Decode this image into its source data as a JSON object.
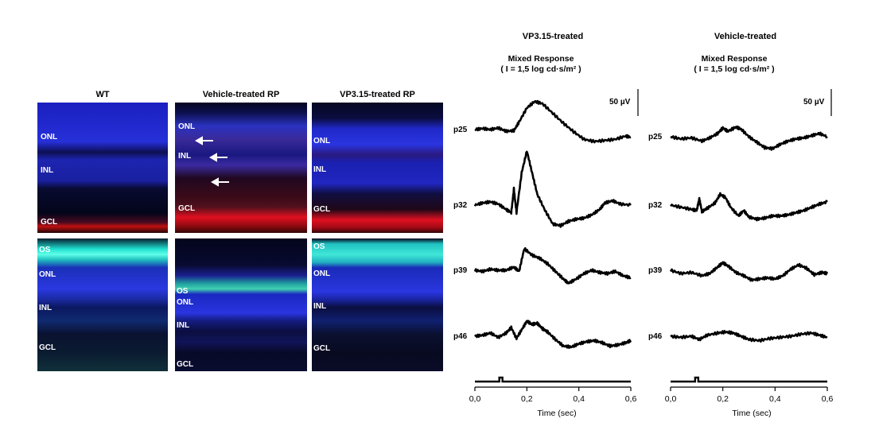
{
  "micrographs": {
    "columns": [
      "WT",
      "Vehicle-treated RP",
      "VP3.15-treated RP"
    ],
    "panels": [
      {
        "id": "wt-top",
        "labels": [
          {
            "t": "ONL"
          },
          {
            "t": "INL"
          },
          {
            "t": "GCL"
          }
        ]
      },
      {
        "id": "veh-top",
        "labels": [
          {
            "t": "ONL"
          },
          {
            "t": "INL"
          },
          {
            "t": "GCL"
          }
        ]
      },
      {
        "id": "vp-top",
        "labels": [
          {
            "t": "ONL"
          },
          {
            "t": "INL"
          },
          {
            "t": "GCL"
          }
        ]
      },
      {
        "id": "wt-bot",
        "labels": [
          {
            "t": "OS"
          },
          {
            "t": "ONL"
          },
          {
            "t": "INL"
          },
          {
            "t": "GCL"
          }
        ]
      },
      {
        "id": "veh-bot",
        "labels": [
          {
            "t": "OS"
          },
          {
            "t": "ONL"
          },
          {
            "t": "INL"
          },
          {
            "t": "GCL"
          }
        ]
      },
      {
        "id": "vp-bot",
        "labels": [
          {
            "t": "OS"
          },
          {
            "t": "ONL"
          },
          {
            "t": "INL"
          },
          {
            "t": "GCL"
          }
        ]
      }
    ]
  },
  "chart_data": [
    {
      "type": "line",
      "title": "VP3.15-treated",
      "subtitle_line1": "Mixed Response",
      "subtitle_line2": "( I = 1,5 log cd·s/m² )",
      "xlabel": "Time (sec)",
      "xlim": [
        0,
        0.6
      ],
      "xticks": [
        "0,0",
        "0,2",
        "0,4",
        "0,6"
      ],
      "scale_bar": "50 µV",
      "series": [
        {
          "name": "p25",
          "x": [
            0,
            0.03,
            0.06,
            0.09,
            0.12,
            0.15,
            0.17,
            0.2,
            0.23,
            0.26,
            0.3,
            0.34,
            0.38,
            0.42,
            0.46,
            0.5,
            0.54,
            0.58,
            0.6
          ],
          "y": [
            0,
            2,
            0,
            3,
            -3,
            -2,
            14,
            40,
            52,
            48,
            30,
            12,
            -4,
            -18,
            -22,
            -20,
            -18,
            -12,
            -14
          ]
        },
        {
          "name": "p32",
          "x": [
            0,
            0.03,
            0.06,
            0.09,
            0.12,
            0.14,
            0.15,
            0.16,
            0.18,
            0.2,
            0.22,
            0.24,
            0.27,
            0.3,
            0.33,
            0.36,
            0.39,
            0.42,
            0.45,
            0.48,
            0.5,
            0.53,
            0.56,
            0.6
          ],
          "y": [
            0,
            4,
            6,
            2,
            -8,
            -14,
            30,
            -14,
            60,
            100,
            60,
            20,
            -10,
            -35,
            -38,
            -30,
            -26,
            -24,
            -18,
            -8,
            4,
            8,
            2,
            0
          ]
        },
        {
          "name": "p39",
          "x": [
            0,
            0.03,
            0.06,
            0.09,
            0.12,
            0.15,
            0.17,
            0.19,
            0.22,
            0.25,
            0.28,
            0.31,
            0.34,
            0.36,
            0.39,
            0.42,
            0.45,
            0.48,
            0.51,
            0.54,
            0.57,
            0.6
          ],
          "y": [
            0,
            -2,
            2,
            0,
            0,
            6,
            -2,
            40,
            28,
            22,
            12,
            -2,
            -16,
            -24,
            -16,
            -6,
            0,
            -4,
            -6,
            -2,
            -10,
            -14
          ]
        },
        {
          "name": "p46",
          "x": [
            0,
            0.03,
            0.06,
            0.09,
            0.12,
            0.14,
            0.16,
            0.18,
            0.2,
            0.22,
            0.24,
            0.26,
            0.28,
            0.31,
            0.34,
            0.37,
            0.4,
            0.43,
            0.46,
            0.49,
            0.52,
            0.55,
            0.58,
            0.6
          ],
          "y": [
            0,
            2,
            6,
            -2,
            6,
            16,
            -4,
            12,
            28,
            22,
            24,
            14,
            8,
            -6,
            -18,
            -20,
            -14,
            -10,
            -8,
            -12,
            -18,
            -16,
            -12,
            -8
          ]
        }
      ],
      "stimulus_marker_x": 0.1
    },
    {
      "type": "line",
      "title": "Vehicle-treated",
      "subtitle_line1": "Mixed Response",
      "subtitle_line2": "( I = 1,5 log cd·s/m² )",
      "xlabel": "Time (sec)",
      "xlim": [
        0,
        0.6
      ],
      "xticks": [
        "0,0",
        "0,2",
        "0,4",
        "0,6"
      ],
      "scale_bar": "50 µV",
      "series": [
        {
          "name": "p25",
          "x": [
            0,
            0.04,
            0.08,
            0.12,
            0.15,
            0.18,
            0.2,
            0.22,
            0.25,
            0.27,
            0.3,
            0.33,
            0.36,
            0.39,
            0.42,
            0.45,
            0.48,
            0.51,
            0.54,
            0.57,
            0.6
          ],
          "y": [
            0,
            -4,
            -2,
            -8,
            -2,
            6,
            16,
            10,
            18,
            14,
            0,
            -10,
            -20,
            -22,
            -14,
            -8,
            -4,
            -2,
            2,
            6,
            0
          ]
        },
        {
          "name": "p32",
          "x": [
            0,
            0.04,
            0.08,
            0.1,
            0.11,
            0.12,
            0.14,
            0.17,
            0.19,
            0.21,
            0.23,
            0.26,
            0.28,
            0.3,
            0.33,
            0.36,
            0.39,
            0.42,
            0.45,
            0.48,
            0.51,
            0.54,
            0.57,
            0.6
          ],
          "y": [
            0,
            -4,
            -8,
            -10,
            12,
            -12,
            -6,
            4,
            20,
            14,
            -4,
            -20,
            -10,
            -22,
            -26,
            -24,
            -20,
            -20,
            -18,
            -14,
            -10,
            -4,
            2,
            6
          ]
        },
        {
          "name": "p39",
          "x": [
            0,
            0.04,
            0.08,
            0.12,
            0.15,
            0.18,
            0.2,
            0.22,
            0.25,
            0.28,
            0.31,
            0.34,
            0.37,
            0.4,
            0.43,
            0.46,
            0.49,
            0.52,
            0.55,
            0.58,
            0.6
          ],
          "y": [
            0,
            -6,
            -4,
            -10,
            -6,
            6,
            14,
            8,
            -4,
            -10,
            -18,
            -16,
            -14,
            -16,
            -10,
            2,
            10,
            4,
            -8,
            -4,
            -6
          ]
        },
        {
          "name": "p46",
          "x": [
            0,
            0.04,
            0.08,
            0.11,
            0.14,
            0.18,
            0.21,
            0.24,
            0.27,
            0.3,
            0.34,
            0.38,
            0.42,
            0.46,
            0.5,
            0.54,
            0.57,
            0.6
          ],
          "y": [
            0,
            -2,
            0,
            -6,
            2,
            6,
            8,
            6,
            0,
            -6,
            -8,
            -4,
            -2,
            0,
            4,
            6,
            2,
            -2
          ]
        }
      ],
      "stimulus_marker_x": 0.1
    }
  ]
}
